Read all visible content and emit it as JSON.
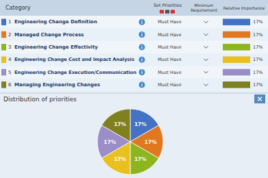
{
  "chart_data": [
    {
      "type": "table",
      "columns": [
        "Category",
        "Set Priorities",
        "Minimum\nRequirement",
        "Relative Importance"
      ],
      "row_numbers": [
        1,
        2,
        3,
        4,
        5,
        6
      ],
      "categories": [
        "Engineering Change Definition",
        "Managed Change Process",
        "Engineering Change Effectivity",
        "Engineering Change Cost and Impact Analysis",
        "Engineering Change Execution/Communication",
        "Managing Engineering Changes"
      ],
      "requirement": [
        "Must Have",
        "Must Have",
        "Must Have",
        "Must Have",
        "Must Have",
        "Must Have"
      ],
      "values": [
        17,
        17,
        17,
        17,
        17,
        17
      ],
      "value_labels": [
        "17%",
        "17%",
        "17%",
        "17%",
        "17%",
        "17%"
      ],
      "colors": [
        "#4472c4",
        "#e07820",
        "#8db520",
        "#e8c020",
        "#9b8dc8",
        "#808020"
      ]
    },
    {
      "type": "pie",
      "title": "Distribution of priorities",
      "values": [
        17,
        17,
        17,
        17,
        17,
        17
      ],
      "value_labels": [
        "17%",
        "17%",
        "17%",
        "17%",
        "17%",
        "17%"
      ],
      "colors": [
        "#4472c4",
        "#e07820",
        "#8db520",
        "#e8c020",
        "#9b8dc8",
        "#808020"
      ],
      "data_labels": true
    }
  ]
}
